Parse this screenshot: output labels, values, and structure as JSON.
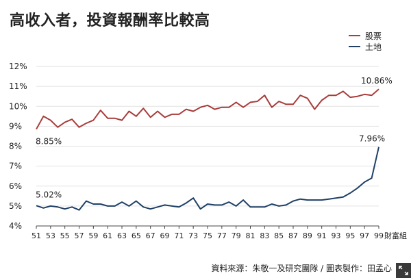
{
  "title": "高收入者，投資報酬率比較高",
  "source": "資料來源：朱敬一及研究團隊 / 圖表製作：田孟心",
  "colors": {
    "stocks": "#a83c3a",
    "land": "#1f3f66",
    "grid": "#e2e2e2",
    "axis": "#444444",
    "text": "#222222"
  },
  "icons": {
    "corner": "expand-icon"
  },
  "chart_data": {
    "type": "line",
    "title": "高收入者，投資報酬率比較高",
    "xlabel": "財富組",
    "ylabel": "",
    "x": [
      51,
      52,
      53,
      54,
      55,
      56,
      57,
      58,
      59,
      60,
      61,
      62,
      63,
      64,
      65,
      66,
      67,
      68,
      69,
      70,
      71,
      72,
      73,
      74,
      75,
      76,
      77,
      78,
      79,
      80,
      81,
      82,
      83,
      84,
      85,
      86,
      87,
      88,
      89,
      90,
      91,
      92,
      93,
      94,
      95,
      96,
      97,
      98,
      99
    ],
    "x_ticks": [
      "51",
      "53",
      "55",
      "57",
      "59",
      "61",
      "63",
      "65",
      "67",
      "69",
      "71",
      "73",
      "75",
      "77",
      "79",
      "81",
      "83",
      "85",
      "87",
      "89",
      "91",
      "93",
      "95",
      "97",
      "99"
    ],
    "y_ticks": [
      "4%",
      "5%",
      "6%",
      "7%",
      "8%",
      "9%",
      "10%",
      "11%",
      "12%"
    ],
    "ylim": [
      4,
      12
    ],
    "grid": true,
    "legend": "top-right",
    "series": [
      {
        "name": "股票",
        "color": "#a83c3a",
        "values": [
          8.85,
          9.5,
          9.3,
          8.95,
          9.2,
          9.35,
          8.95,
          9.15,
          9.3,
          9.8,
          9.4,
          9.4,
          9.3,
          9.75,
          9.5,
          9.9,
          9.45,
          9.75,
          9.45,
          9.6,
          9.6,
          9.85,
          9.75,
          9.95,
          10.05,
          9.85,
          9.95,
          9.95,
          10.2,
          9.95,
          10.2,
          10.25,
          10.55,
          9.95,
          10.25,
          10.1,
          10.1,
          10.55,
          10.4,
          9.85,
          10.3,
          10.55,
          10.55,
          10.75,
          10.45,
          10.5,
          10.6,
          10.55,
          10.86
        ]
      },
      {
        "name": "土地",
        "color": "#1f3f66",
        "values": [
          5.02,
          4.9,
          5.0,
          4.95,
          4.85,
          4.95,
          4.8,
          5.25,
          5.1,
          5.1,
          5.0,
          5.0,
          5.2,
          5.0,
          5.25,
          4.95,
          4.85,
          4.95,
          5.05,
          5.0,
          4.95,
          5.15,
          5.4,
          4.85,
          5.1,
          5.05,
          5.05,
          5.2,
          5.0,
          5.3,
          4.95,
          4.95,
          4.95,
          5.1,
          5.0,
          5.05,
          5.25,
          5.35,
          5.3,
          5.3,
          5.3,
          5.35,
          5.4,
          5.45,
          5.65,
          5.9,
          6.2,
          6.4,
          7.96
        ]
      }
    ],
    "annotations": [
      "8.85%",
      "10.86%",
      "5.02%",
      "7.96%"
    ]
  }
}
